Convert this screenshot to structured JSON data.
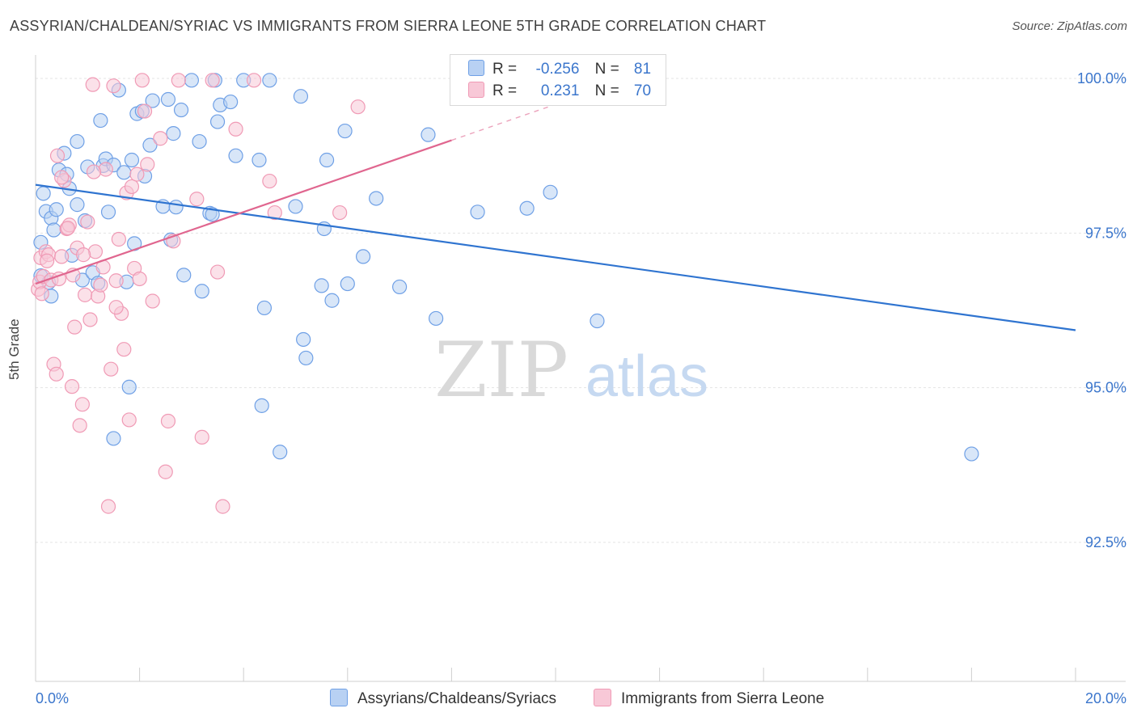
{
  "chart_data": {
    "type": "scatter",
    "title": "ASSYRIAN/CHALDEAN/SYRIAC VS IMMIGRANTS FROM SIERRA LEONE 5TH GRADE CORRELATION CHART",
    "source": "Source: ZipAtlas.com",
    "xlabel": "",
    "ylabel": "5th Grade",
    "xlim": [
      0,
      20
    ],
    "ylim": [
      90.0,
      100.4
    ],
    "x_tick_labels": [
      "0.0%",
      "20.0%"
    ],
    "y_ticks": [
      {
        "value": 100.0,
        "label": "100.0%"
      },
      {
        "value": 97.5,
        "label": "97.5%"
      },
      {
        "value": 95.0,
        "label": "95.0%"
      },
      {
        "value": 92.5,
        "label": "92.5%"
      }
    ],
    "watermark": {
      "zip": "ZIP",
      "atlas": "atlas"
    },
    "stats": {
      "r_label": "R =",
      "n_label": "N =",
      "rows": [
        {
          "r": "-0.256",
          "n": "81"
        },
        {
          "r": "0.231",
          "n": "70"
        }
      ]
    },
    "series": [
      {
        "name": "Assyrians/Chaldeans/Syriacs",
        "color": "#6fa0e6",
        "fill": "#b8d1f3",
        "line_color": "#2f74d0",
        "trend": {
          "x": [
            0,
            20
          ],
          "y": [
            98.28,
            95.93
          ]
        },
        "points": [
          [
            0.1,
            96.81
          ],
          [
            0.1,
            97.35
          ],
          [
            0.15,
            98.14
          ],
          [
            0.2,
            97.85
          ],
          [
            0.25,
            96.7
          ],
          [
            0.3,
            96.48
          ],
          [
            0.3,
            97.74
          ],
          [
            0.35,
            97.55
          ],
          [
            0.4,
            97.88
          ],
          [
            0.45,
            98.52
          ],
          [
            0.55,
            98.79
          ],
          [
            0.6,
            98.45
          ],
          [
            0.65,
            98.22
          ],
          [
            0.7,
            97.14
          ],
          [
            0.8,
            97.96
          ],
          [
            0.8,
            98.98
          ],
          [
            0.9,
            96.74
          ],
          [
            0.95,
            97.7
          ],
          [
            1.0,
            98.57
          ],
          [
            1.1,
            96.86
          ],
          [
            1.2,
            96.69
          ],
          [
            1.25,
            99.32
          ],
          [
            1.3,
            98.59
          ],
          [
            1.35,
            98.7
          ],
          [
            1.4,
            97.84
          ],
          [
            1.5,
            98.6
          ],
          [
            1.6,
            99.81
          ],
          [
            1.7,
            98.48
          ],
          [
            1.75,
            96.71
          ],
          [
            1.8,
            95.01
          ],
          [
            1.85,
            98.68
          ],
          [
            1.9,
            97.33
          ],
          [
            1.95,
            99.43
          ],
          [
            2.05,
            99.47
          ],
          [
            2.1,
            98.42
          ],
          [
            2.2,
            98.92
          ],
          [
            2.25,
            99.64
          ],
          [
            2.45,
            97.93
          ],
          [
            2.55,
            99.66
          ],
          [
            2.6,
            97.39
          ],
          [
            2.65,
            99.11
          ],
          [
            2.7,
            97.92
          ],
          [
            2.8,
            99.49
          ],
          [
            2.85,
            96.82
          ],
          [
            3.0,
            99.97
          ],
          [
            3.15,
            98.98
          ],
          [
            3.2,
            96.56
          ],
          [
            3.35,
            97.82
          ],
          [
            3.45,
            99.97
          ],
          [
            3.5,
            99.3
          ],
          [
            3.55,
            99.57
          ],
          [
            3.75,
            99.62
          ],
          [
            3.85,
            98.75
          ],
          [
            4.0,
            99.97
          ],
          [
            4.3,
            98.68
          ],
          [
            4.35,
            94.71
          ],
          [
            4.4,
            96.29
          ],
          [
            4.5,
            99.97
          ],
          [
            4.7,
            93.96
          ],
          [
            5.0,
            97.93
          ],
          [
            5.1,
            99.71
          ],
          [
            5.15,
            95.78
          ],
          [
            5.2,
            95.48
          ],
          [
            5.5,
            96.65
          ],
          [
            5.55,
            97.57
          ],
          [
            5.6,
            98.68
          ],
          [
            5.7,
            96.41
          ],
          [
            5.95,
            99.15
          ],
          [
            6.0,
            96.68
          ],
          [
            6.3,
            97.12
          ],
          [
            6.55,
            98.06
          ],
          [
            7.0,
            96.63
          ],
          [
            7.55,
            99.09
          ],
          [
            7.7,
            96.12
          ],
          [
            1.5,
            94.18
          ],
          [
            8.5,
            97.84
          ],
          [
            9.45,
            97.9
          ],
          [
            9.9,
            98.16
          ],
          [
            10.8,
            96.08
          ],
          [
            18.0,
            93.93
          ],
          [
            3.4,
            97.8
          ]
        ]
      },
      {
        "name": "Immigrants from Sierra Leone",
        "color": "#f09ab5",
        "fill": "#f8c8d7",
        "line_color": "#e0668f",
        "trend": {
          "x": [
            0,
            8
          ],
          "y": [
            96.68,
            99.0
          ]
        },
        "trend_dashed": {
          "x": [
            8,
            11
          ],
          "y": [
            99.0,
            99.87
          ]
        },
        "points": [
          [
            0.05,
            96.59
          ],
          [
            0.08,
            96.71
          ],
          [
            0.1,
            97.1
          ],
          [
            0.15,
            96.8
          ],
          [
            0.2,
            97.2
          ],
          [
            0.25,
            97.15
          ],
          [
            0.3,
            96.74
          ],
          [
            0.35,
            95.38
          ],
          [
            0.4,
            95.22
          ],
          [
            0.45,
            96.76
          ],
          [
            0.5,
            97.12
          ],
          [
            0.55,
            98.35
          ],
          [
            0.6,
            97.57
          ],
          [
            0.65,
            97.63
          ],
          [
            0.7,
            95.02
          ],
          [
            0.75,
            95.98
          ],
          [
            0.8,
            97.26
          ],
          [
            0.85,
            94.39
          ],
          [
            0.9,
            94.73
          ],
          [
            0.95,
            96.5
          ],
          [
            1.0,
            97.68
          ],
          [
            1.05,
            96.1
          ],
          [
            1.1,
            99.9
          ],
          [
            1.15,
            97.2
          ],
          [
            1.2,
            96.48
          ],
          [
            1.25,
            96.66
          ],
          [
            1.3,
            96.95
          ],
          [
            1.35,
            98.53
          ],
          [
            1.4,
            93.08
          ],
          [
            1.45,
            95.3
          ],
          [
            1.5,
            99.88
          ],
          [
            1.55,
            96.73
          ],
          [
            1.6,
            97.4
          ],
          [
            1.65,
            96.2
          ],
          [
            1.7,
            95.62
          ],
          [
            1.75,
            98.15
          ],
          [
            1.8,
            94.48
          ],
          [
            1.85,
            98.25
          ],
          [
            1.9,
            96.93
          ],
          [
            1.95,
            98.45
          ],
          [
            2.0,
            96.76
          ],
          [
            2.05,
            99.97
          ],
          [
            2.1,
            99.47
          ],
          [
            2.15,
            98.61
          ],
          [
            2.25,
            96.4
          ],
          [
            2.4,
            99.03
          ],
          [
            2.5,
            93.64
          ],
          [
            2.55,
            94.46
          ],
          [
            2.65,
            97.37
          ],
          [
            2.75,
            99.97
          ],
          [
            3.1,
            98.05
          ],
          [
            3.2,
            94.2
          ],
          [
            3.4,
            99.97
          ],
          [
            3.5,
            96.87
          ],
          [
            3.6,
            93.08
          ],
          [
            3.85,
            99.18
          ],
          [
            4.2,
            99.97
          ],
          [
            4.5,
            98.34
          ],
          [
            4.6,
            97.83
          ],
          [
            5.85,
            97.83
          ],
          [
            6.2,
            99.54
          ],
          [
            0.12,
            96.52
          ],
          [
            0.22,
            97.05
          ],
          [
            0.42,
            98.75
          ],
          [
            0.62,
            97.58
          ],
          [
            0.92,
            97.15
          ],
          [
            1.12,
            98.49
          ],
          [
            0.72,
            96.82
          ],
          [
            0.5,
            98.4
          ],
          [
            1.55,
            96.3
          ]
        ]
      }
    ]
  }
}
